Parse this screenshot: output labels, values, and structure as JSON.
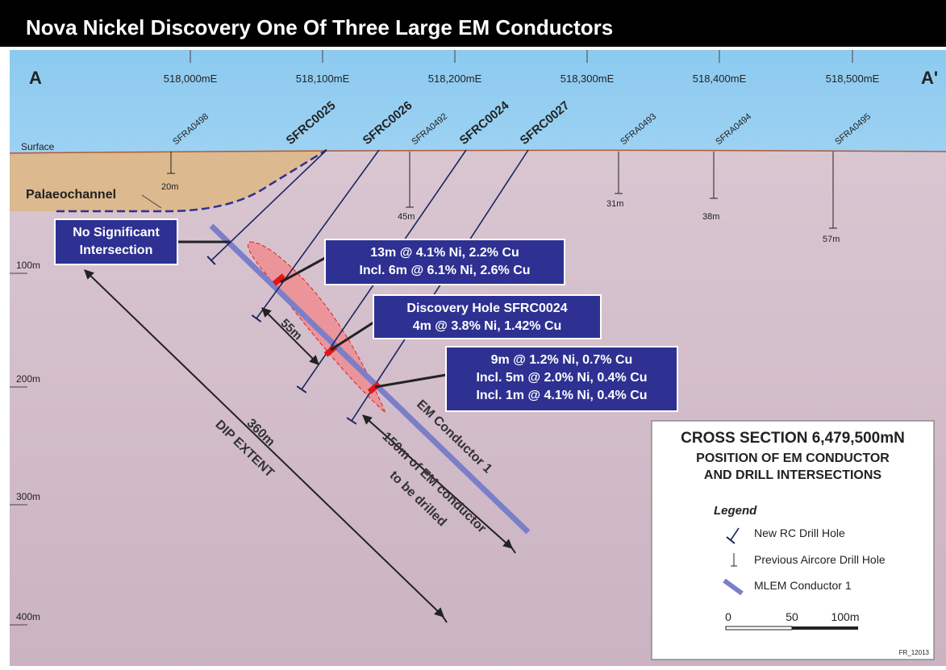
{
  "header": {
    "title": "Nova Nickel Discovery One Of Three Large EM Conductors"
  },
  "section": {
    "start": "A",
    "end": "A'"
  },
  "eastings": [
    "518,000mE",
    "518,100mE",
    "518,200mE",
    "518,300mE",
    "518,400mE",
    "518,500mE"
  ],
  "depths": [
    "100m",
    "200m",
    "300m",
    "400m"
  ],
  "surface": "Surface",
  "palaeochannel": "Palaeochannel",
  "rc_holes": [
    "SFRC0025",
    "SFRC0026",
    "SFRC0024",
    "SFRC0027"
  ],
  "aircore_holes": [
    {
      "name": "SFRA0498",
      "depth": "20m"
    },
    {
      "name": "SFRA0492",
      "depth": "45m"
    },
    {
      "name": "SFRA0493",
      "depth": "31m"
    },
    {
      "name": "SFRA0494",
      "depth": "38m"
    },
    {
      "name": "SFRA0495",
      "depth": "57m"
    }
  ],
  "callouts": [
    [
      "No Significant",
      "Intersection"
    ],
    [
      "13m @ 4.1% Ni, 2.2% Cu",
      "Incl. 6m @ 6.1% Ni, 2.6% Cu"
    ],
    [
      "Discovery Hole SFRC0024",
      "4m @ 3.8% Ni, 1.42% Cu"
    ],
    [
      "9m @ 1.2% Ni, 0.7% Cu",
      "Incl. 5m @ 2.0% Ni, 0.4% Cu",
      "Incl. 1m @ 4.1% Ni, 0.4% Cu"
    ]
  ],
  "annotations": {
    "spacing": "55m",
    "dip_length": "360m",
    "dip_label": "DIP EXTENT",
    "drill_length": "150m of EM conductor",
    "drill_note": "to be drilled",
    "conductor": "EM Conductor 1"
  },
  "legend": {
    "heading": [
      "CROSS SECTION 6,479,500mN",
      "POSITION OF EM CONDUCTOR",
      "AND DRILL INTERSECTIONS"
    ],
    "title": "Legend",
    "items": [
      "New RC Drill Hole",
      "Previous Aircore Drill Hole",
      "MLEM Conductor 1"
    ],
    "scale": [
      "0",
      "50",
      "100m"
    ],
    "ref": "FR_12013"
  }
}
